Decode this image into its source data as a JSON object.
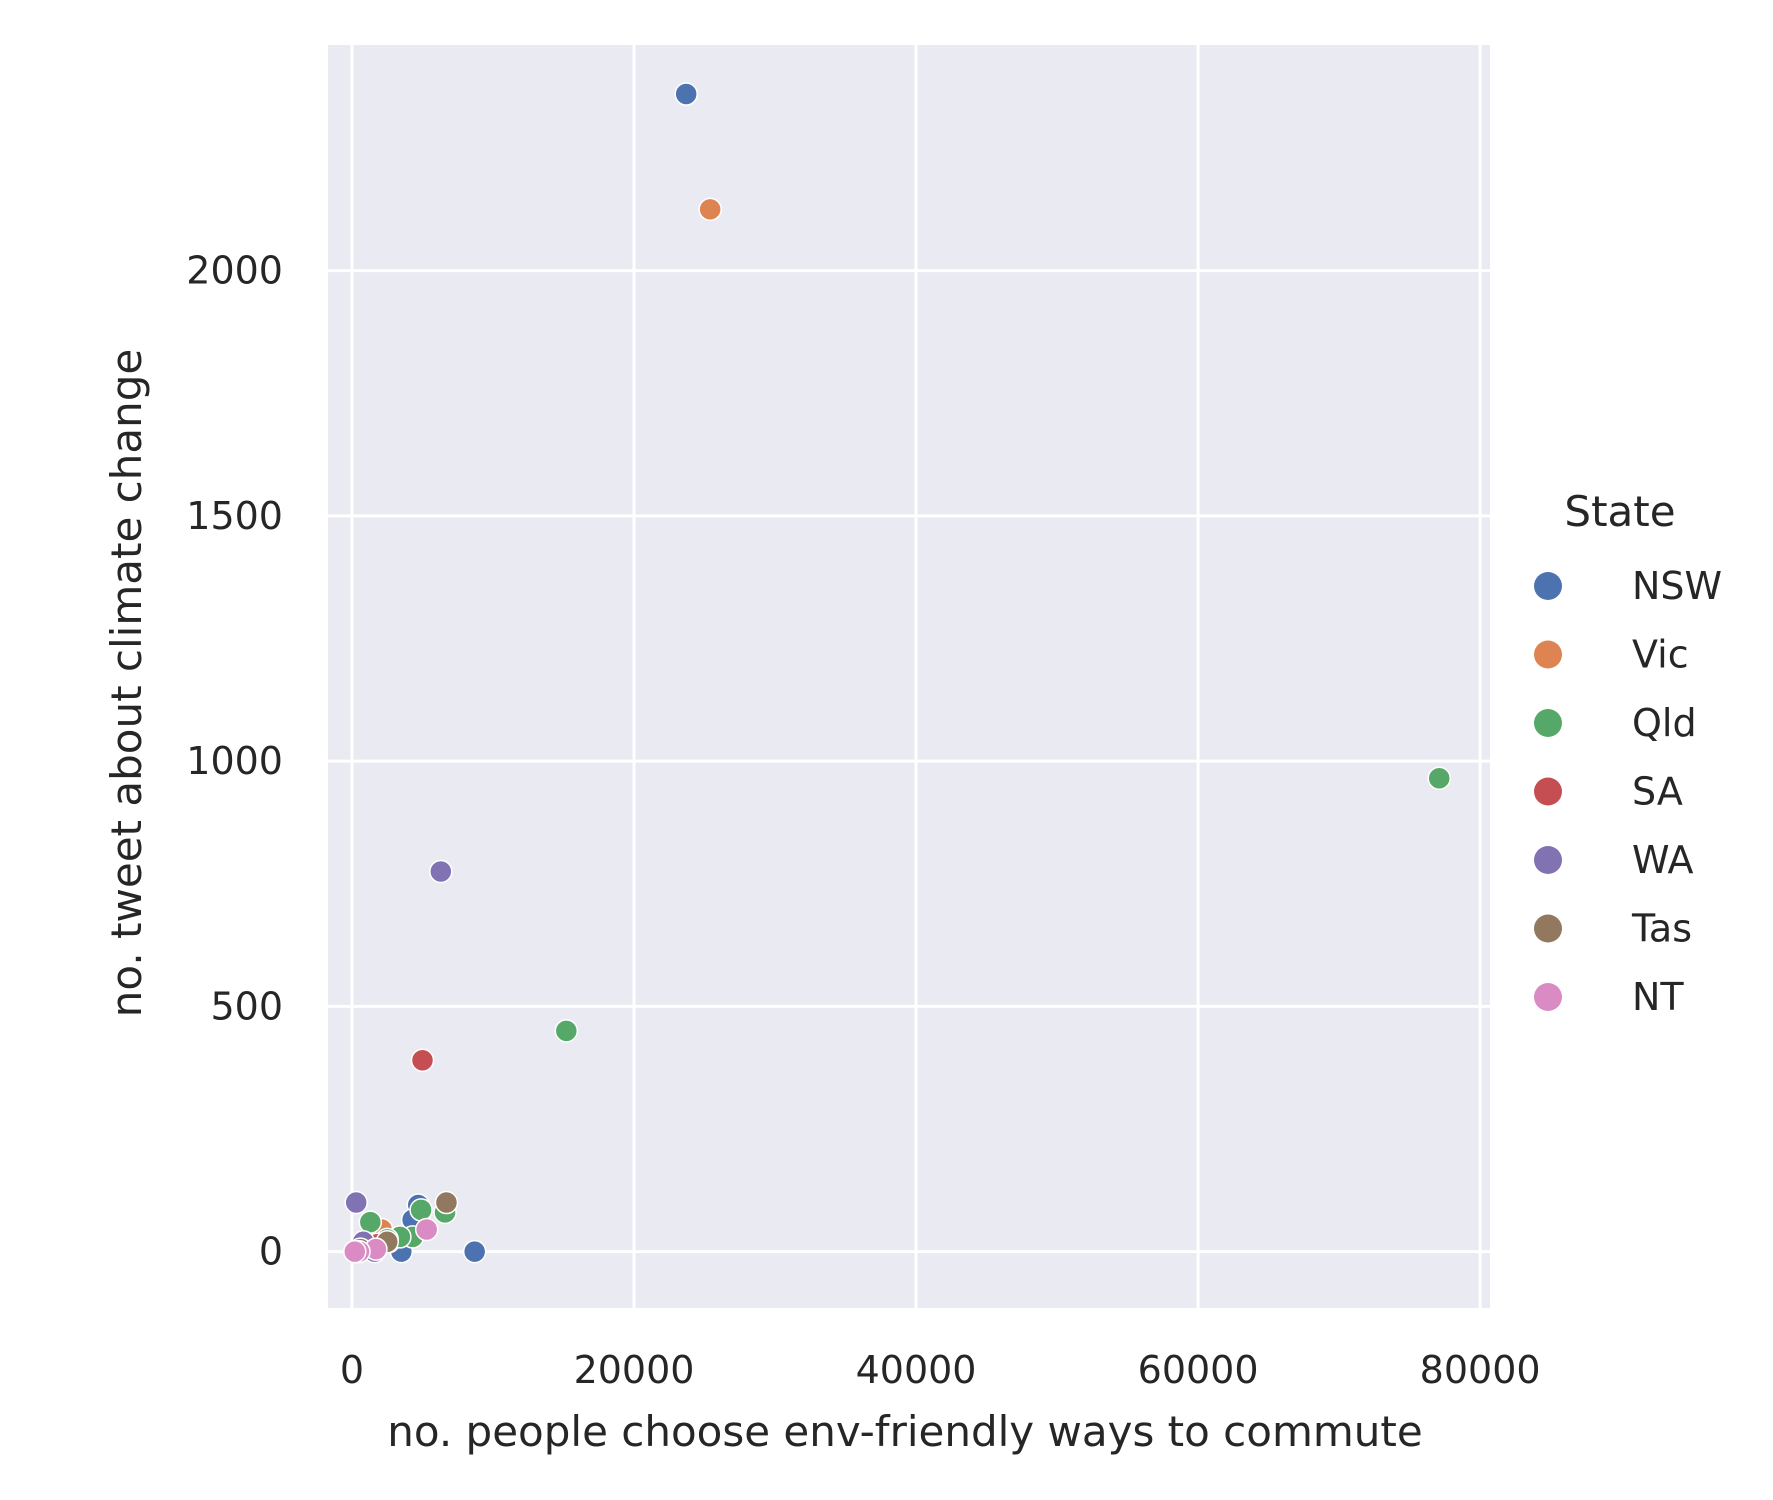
{
  "chart_data": {
    "type": "scatter",
    "title": "",
    "xlabel": "no. people choose env-friendly ways to commute",
    "ylabel": "no. tweet about climate change",
    "xlim": [
      -1700,
      80700
    ],
    "ylim": [
      -115,
      2460
    ],
    "xticks": [
      0,
      20000,
      40000,
      60000,
      80000
    ],
    "yticks": [
      0,
      500,
      1000,
      1500,
      2000
    ],
    "grid": true,
    "legend": {
      "title": "State",
      "placement": "right"
    },
    "colors": {
      "plot_background": "#EAEAF2",
      "grid": "#FFFFFF"
    },
    "series": [
      {
        "name": "NSW",
        "color": "#4C72B0",
        "points": [
          {
            "x": 23700,
            "y": 2360
          },
          {
            "x": 8700,
            "y": 0
          },
          {
            "x": 4700,
            "y": 95
          },
          {
            "x": 4300,
            "y": 65
          },
          {
            "x": 3500,
            "y": 0
          },
          {
            "x": 1000,
            "y": 10
          },
          {
            "x": 300,
            "y": 0
          }
        ]
      },
      {
        "name": "Vic",
        "color": "#DD8452",
        "points": [
          {
            "x": 25400,
            "y": 2125
          },
          {
            "x": 2100,
            "y": 45
          },
          {
            "x": 2600,
            "y": 20
          },
          {
            "x": 800,
            "y": 5
          }
        ]
      },
      {
        "name": "Qld",
        "color": "#55A868",
        "points": [
          {
            "x": 77100,
            "y": 965
          },
          {
            "x": 15200,
            "y": 450
          },
          {
            "x": 6600,
            "y": 80
          },
          {
            "x": 4900,
            "y": 85
          },
          {
            "x": 4300,
            "y": 30
          },
          {
            "x": 3400,
            "y": 30
          },
          {
            "x": 1300,
            "y": 60
          },
          {
            "x": 2500,
            "y": 25
          }
        ]
      },
      {
        "name": "SA",
        "color": "#C44E52",
        "points": [
          {
            "x": 5000,
            "y": 390
          },
          {
            "x": 1800,
            "y": 15
          }
        ]
      },
      {
        "name": "WA",
        "color": "#8172B3",
        "points": [
          {
            "x": 6300,
            "y": 775
          },
          {
            "x": 300,
            "y": 100
          },
          {
            "x": 800,
            "y": 20
          },
          {
            "x": 1600,
            "y": 0
          }
        ]
      },
      {
        "name": "Tas",
        "color": "#937860",
        "points": [
          {
            "x": 6700,
            "y": 100
          },
          {
            "x": 2500,
            "y": 20
          },
          {
            "x": 600,
            "y": 5
          }
        ]
      },
      {
        "name": "NT",
        "color": "#DA8BC3",
        "points": [
          {
            "x": 5300,
            "y": 45
          },
          {
            "x": 1700,
            "y": 5
          },
          {
            "x": 500,
            "y": 0
          },
          {
            "x": 200,
            "y": 0
          }
        ]
      }
    ]
  }
}
